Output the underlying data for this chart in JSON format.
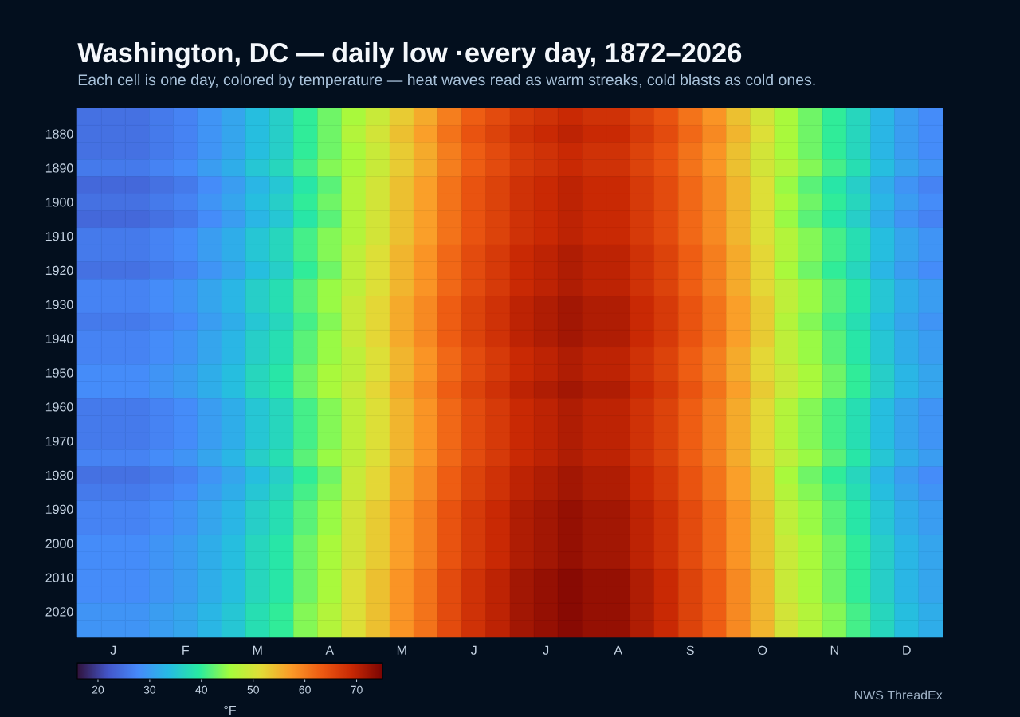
{
  "chart_data": {
    "type": "heatmap",
    "title": "Washington, DC — daily low ·every day, 1872–2026",
    "subtitle": "Each cell is one day, colored by temperature — heat waves read as warm streaks, cold blasts as cold ones.",
    "categories": [
      null,
      "J",
      null,
      null,
      "F",
      null,
      null,
      "M",
      null,
      null,
      "A",
      null,
      null,
      "M",
      null,
      null,
      "J",
      null,
      null,
      "J",
      null,
      null,
      "A",
      null,
      null,
      "S",
      null,
      null,
      "O",
      null,
      null,
      "N",
      null,
      null,
      "D",
      null
    ],
    "y_categories": [
      null,
      "1880",
      null,
      "1890",
      null,
      "1900",
      null,
      "1910",
      null,
      "1920",
      null,
      "1930",
      null,
      "1940",
      null,
      "1950",
      null,
      "1960",
      null,
      "1970",
      null,
      "1980",
      null,
      "1990",
      null,
      "2000",
      null,
      "2010",
      null,
      "2020",
      null
    ],
    "cells": [
      [
        25,
        25,
        25,
        26,
        27,
        29,
        31,
        34,
        36,
        40,
        43,
        46,
        49,
        53,
        56,
        60,
        63,
        65,
        67,
        68,
        69,
        68,
        68,
        66,
        64,
        61,
        58,
        54,
        50,
        46,
        43,
        40,
        37,
        33,
        30,
        28
      ],
      [
        25,
        25,
        25,
        26,
        27,
        29,
        31,
        34,
        36,
        40,
        43,
        47,
        50,
        54,
        57,
        61,
        64,
        66,
        68,
        69,
        70,
        69,
        69,
        67,
        65,
        62,
        59,
        55,
        51,
        46,
        43,
        40,
        37,
        33,
        30,
        28
      ],
      [
        25,
        25,
        25,
        26,
        27,
        29,
        31,
        34,
        36,
        40,
        43,
        46,
        49,
        53,
        56,
        60,
        63,
        65,
        67,
        68,
        69,
        68,
        68,
        66,
        64,
        61,
        58,
        54,
        50,
        46,
        43,
        40,
        37,
        33,
        30,
        28
      ],
      [
        26,
        26,
        26,
        27,
        28,
        30,
        32,
        35,
        37,
        41,
        44,
        46,
        49,
        53,
        56,
        60,
        63,
        65,
        67,
        68,
        69,
        68,
        68,
        66,
        64,
        61,
        58,
        54,
        50,
        47,
        44,
        41,
        38,
        34,
        31,
        29
      ],
      [
        24,
        24,
        24,
        25,
        26,
        28,
        30,
        33,
        35,
        39,
        42,
        47,
        50,
        54,
        57,
        61,
        64,
        66,
        68,
        69,
        70,
        69,
        69,
        67,
        65,
        62,
        59,
        55,
        51,
        45,
        42,
        39,
        36,
        32,
        29,
        27
      ],
      [
        25,
        25,
        25,
        26,
        27,
        29,
        31,
        34,
        36,
        40,
        43,
        47,
        50,
        54,
        57,
        61,
        64,
        66,
        68,
        69,
        70,
        69,
        69,
        67,
        65,
        62,
        59,
        55,
        51,
        46,
        43,
        40,
        37,
        33,
        30,
        28
      ],
      [
        24,
        24,
        24,
        25,
        26,
        28,
        30,
        33,
        35,
        39,
        42,
        47,
        50,
        54,
        57,
        61,
        64,
        66,
        68,
        69,
        70,
        69,
        69,
        67,
        65,
        62,
        59,
        55,
        51,
        45,
        42,
        39,
        36,
        32,
        29,
        27
      ],
      [
        26,
        26,
        26,
        27,
        28,
        30,
        32,
        35,
        37,
        41,
        44,
        47,
        50,
        54,
        57,
        61,
        64,
        66,
        68,
        69,
        70,
        69,
        69,
        67,
        65,
        62,
        59,
        55,
        51,
        47,
        44,
        41,
        38,
        34,
        31,
        29
      ],
      [
        26,
        26,
        26,
        27,
        28,
        30,
        32,
        35,
        37,
        41,
        44,
        48,
        51,
        55,
        58,
        62,
        65,
        67,
        69,
        70,
        71,
        70,
        70,
        68,
        66,
        63,
        60,
        56,
        52,
        47,
        44,
        41,
        38,
        34,
        31,
        29
      ],
      [
        25,
        25,
        25,
        26,
        27,
        29,
        31,
        34,
        36,
        40,
        43,
        48,
        51,
        55,
        58,
        62,
        65,
        67,
        69,
        70,
        71,
        70,
        70,
        68,
        66,
        63,
        60,
        56,
        52,
        46,
        43,
        40,
        37,
        33,
        30,
        28
      ],
      [
        27,
        27,
        27,
        28,
        29,
        31,
        33,
        36,
        38,
        42,
        45,
        48,
        51,
        55,
        58,
        62,
        65,
        67,
        69,
        70,
        71,
        70,
        70,
        68,
        66,
        63,
        60,
        56,
        52,
        48,
        45,
        42,
        39,
        35,
        32,
        30
      ],
      [
        27,
        27,
        27,
        28,
        29,
        31,
        33,
        36,
        38,
        42,
        45,
        49,
        52,
        56,
        59,
        63,
        66,
        68,
        70,
        71,
        72,
        71,
        71,
        69,
        67,
        64,
        61,
        57,
        53,
        48,
        45,
        42,
        39,
        35,
        32,
        30
      ],
      [
        26,
        26,
        26,
        27,
        28,
        30,
        32,
        35,
        37,
        41,
        44,
        49,
        52,
        56,
        59,
        63,
        66,
        68,
        70,
        71,
        72,
        71,
        71,
        69,
        67,
        64,
        61,
        57,
        53,
        47,
        44,
        41,
        38,
        34,
        31,
        29
      ],
      [
        27,
        27,
        27,
        28,
        29,
        31,
        33,
        36,
        38,
        42,
        45,
        49,
        52,
        56,
        59,
        63,
        66,
        68,
        70,
        71,
        72,
        71,
        71,
        69,
        67,
        64,
        61,
        57,
        53,
        48,
        45,
        42,
        39,
        35,
        32,
        30
      ],
      [
        27,
        27,
        27,
        28,
        29,
        31,
        33,
        36,
        38,
        42,
        45,
        48,
        51,
        55,
        58,
        62,
        65,
        67,
        69,
        70,
        71,
        70,
        70,
        68,
        66,
        63,
        60,
        56,
        52,
        48,
        45,
        42,
        39,
        35,
        32,
        30
      ],
      [
        28,
        28,
        28,
        29,
        30,
        32,
        34,
        37,
        39,
        43,
        46,
        48,
        51,
        55,
        58,
        62,
        65,
        67,
        69,
        70,
        71,
        70,
        70,
        68,
        66,
        63,
        60,
        56,
        52,
        49,
        46,
        43,
        40,
        36,
        33,
        31
      ],
      [
        28,
        28,
        28,
        29,
        30,
        32,
        34,
        37,
        39,
        43,
        46,
        49,
        52,
        56,
        59,
        63,
        66,
        68,
        70,
        71,
        72,
        71,
        71,
        69,
        67,
        64,
        61,
        57,
        53,
        49,
        46,
        43,
        40,
        36,
        33,
        31
      ],
      [
        26,
        26,
        26,
        27,
        28,
        30,
        32,
        35,
        37,
        41,
        44,
        48,
        51,
        55,
        58,
        62,
        65,
        67,
        69,
        70,
        71,
        70,
        70,
        68,
        66,
        63,
        60,
        56,
        52,
        47,
        44,
        41,
        38,
        34,
        31,
        29
      ],
      [
        26,
        26,
        26,
        27,
        28,
        30,
        32,
        35,
        37,
        41,
        44,
        48,
        51,
        55,
        58,
        62,
        65,
        67,
        69,
        70,
        71,
        70,
        70,
        68,
        66,
        63,
        60,
        56,
        52,
        47,
        44,
        41,
        38,
        34,
        31,
        29
      ],
      [
        26,
        26,
        26,
        27,
        28,
        30,
        32,
        35,
        37,
        41,
        44,
        48,
        51,
        55,
        58,
        62,
        65,
        67,
        69,
        70,
        71,
        70,
        70,
        68,
        66,
        63,
        60,
        56,
        52,
        47,
        44,
        41,
        38,
        34,
        31,
        29
      ],
      [
        27,
        27,
        27,
        28,
        29,
        31,
        33,
        36,
        38,
        42,
        45,
        48,
        51,
        55,
        58,
        62,
        65,
        67,
        69,
        70,
        71,
        70,
        70,
        68,
        66,
        63,
        60,
        56,
        52,
        48,
        45,
        42,
        39,
        35,
        32,
        30
      ],
      [
        25,
        25,
        25,
        26,
        27,
        29,
        31,
        34,
        36,
        40,
        43,
        49,
        52,
        56,
        59,
        63,
        66,
        68,
        70,
        71,
        72,
        71,
        71,
        69,
        67,
        64,
        61,
        57,
        53,
        46,
        43,
        40,
        37,
        33,
        30,
        28
      ],
      [
        26,
        26,
        26,
        27,
        28,
        30,
        32,
        35,
        37,
        41,
        44,
        49,
        52,
        56,
        59,
        63,
        66,
        68,
        70,
        71,
        72,
        71,
        71,
        69,
        67,
        64,
        61,
        57,
        53,
        47,
        44,
        41,
        38,
        34,
        31,
        29
      ],
      [
        27,
        27,
        27,
        28,
        29,
        31,
        33,
        36,
        38,
        42,
        45,
        50,
        53,
        57,
        60,
        64,
        67,
        69,
        71,
        72,
        73,
        72,
        72,
        70,
        68,
        65,
        62,
        58,
        54,
        48,
        45,
        42,
        39,
        35,
        32,
        30
      ],
      [
        27,
        27,
        27,
        28,
        29,
        31,
        33,
        36,
        38,
        42,
        45,
        50,
        53,
        57,
        60,
        64,
        67,
        69,
        71,
        72,
        73,
        72,
        72,
        70,
        68,
        65,
        62,
        58,
        54,
        48,
        45,
        42,
        39,
        35,
        32,
        30
      ],
      [
        28,
        28,
        28,
        29,
        30,
        32,
        34,
        37,
        39,
        43,
        46,
        50,
        53,
        57,
        60,
        64,
        67,
        69,
        71,
        72,
        73,
        72,
        72,
        70,
        68,
        65,
        62,
        58,
        54,
        49,
        46,
        43,
        40,
        36,
        33,
        31
      ],
      [
        28,
        28,
        28,
        29,
        30,
        32,
        34,
        37,
        39,
        43,
        46,
        50,
        53,
        57,
        60,
        64,
        67,
        69,
        71,
        72,
        73,
        72,
        72,
        70,
        68,
        65,
        62,
        58,
        54,
        49,
        46,
        43,
        40,
        36,
        33,
        31
      ],
      [
        28,
        28,
        28,
        29,
        30,
        32,
        34,
        37,
        39,
        43,
        46,
        51,
        54,
        58,
        61,
        65,
        68,
        70,
        72,
        73,
        74,
        73,
        73,
        71,
        69,
        66,
        63,
        59,
        55,
        49,
        46,
        43,
        40,
        36,
        33,
        31
      ],
      [
        28,
        28,
        28,
        29,
        30,
        32,
        34,
        37,
        39,
        43,
        46,
        51,
        54,
        58,
        61,
        65,
        68,
        70,
        72,
        73,
        74,
        73,
        73,
        71,
        69,
        66,
        63,
        59,
        55,
        49,
        46,
        43,
        40,
        36,
        33,
        31
      ],
      [
        29,
        29,
        29,
        30,
        31,
        33,
        35,
        38,
        40,
        44,
        47,
        51,
        54,
        58,
        61,
        65,
        68,
        70,
        72,
        73,
        74,
        73,
        73,
        71,
        69,
        66,
        63,
        59,
        55,
        50,
        47,
        44,
        41,
        37,
        34,
        32
      ],
      [
        29,
        29,
        29,
        30,
        31,
        33,
        35,
        38,
        40,
        44,
        47,
        51,
        54,
        58,
        61,
        65,
        68,
        70,
        72,
        73,
        74,
        73,
        73,
        71,
        69,
        66,
        63,
        59,
        55,
        50,
        47,
        44,
        41,
        37,
        34,
        32
      ]
    ],
    "clim": [
      16,
      75
    ],
    "cticks": [
      20,
      30,
      40,
      50,
      60,
      70
    ],
    "clabel": "°F",
    "annotations": [
      "NWS ThreadEx"
    ]
  }
}
